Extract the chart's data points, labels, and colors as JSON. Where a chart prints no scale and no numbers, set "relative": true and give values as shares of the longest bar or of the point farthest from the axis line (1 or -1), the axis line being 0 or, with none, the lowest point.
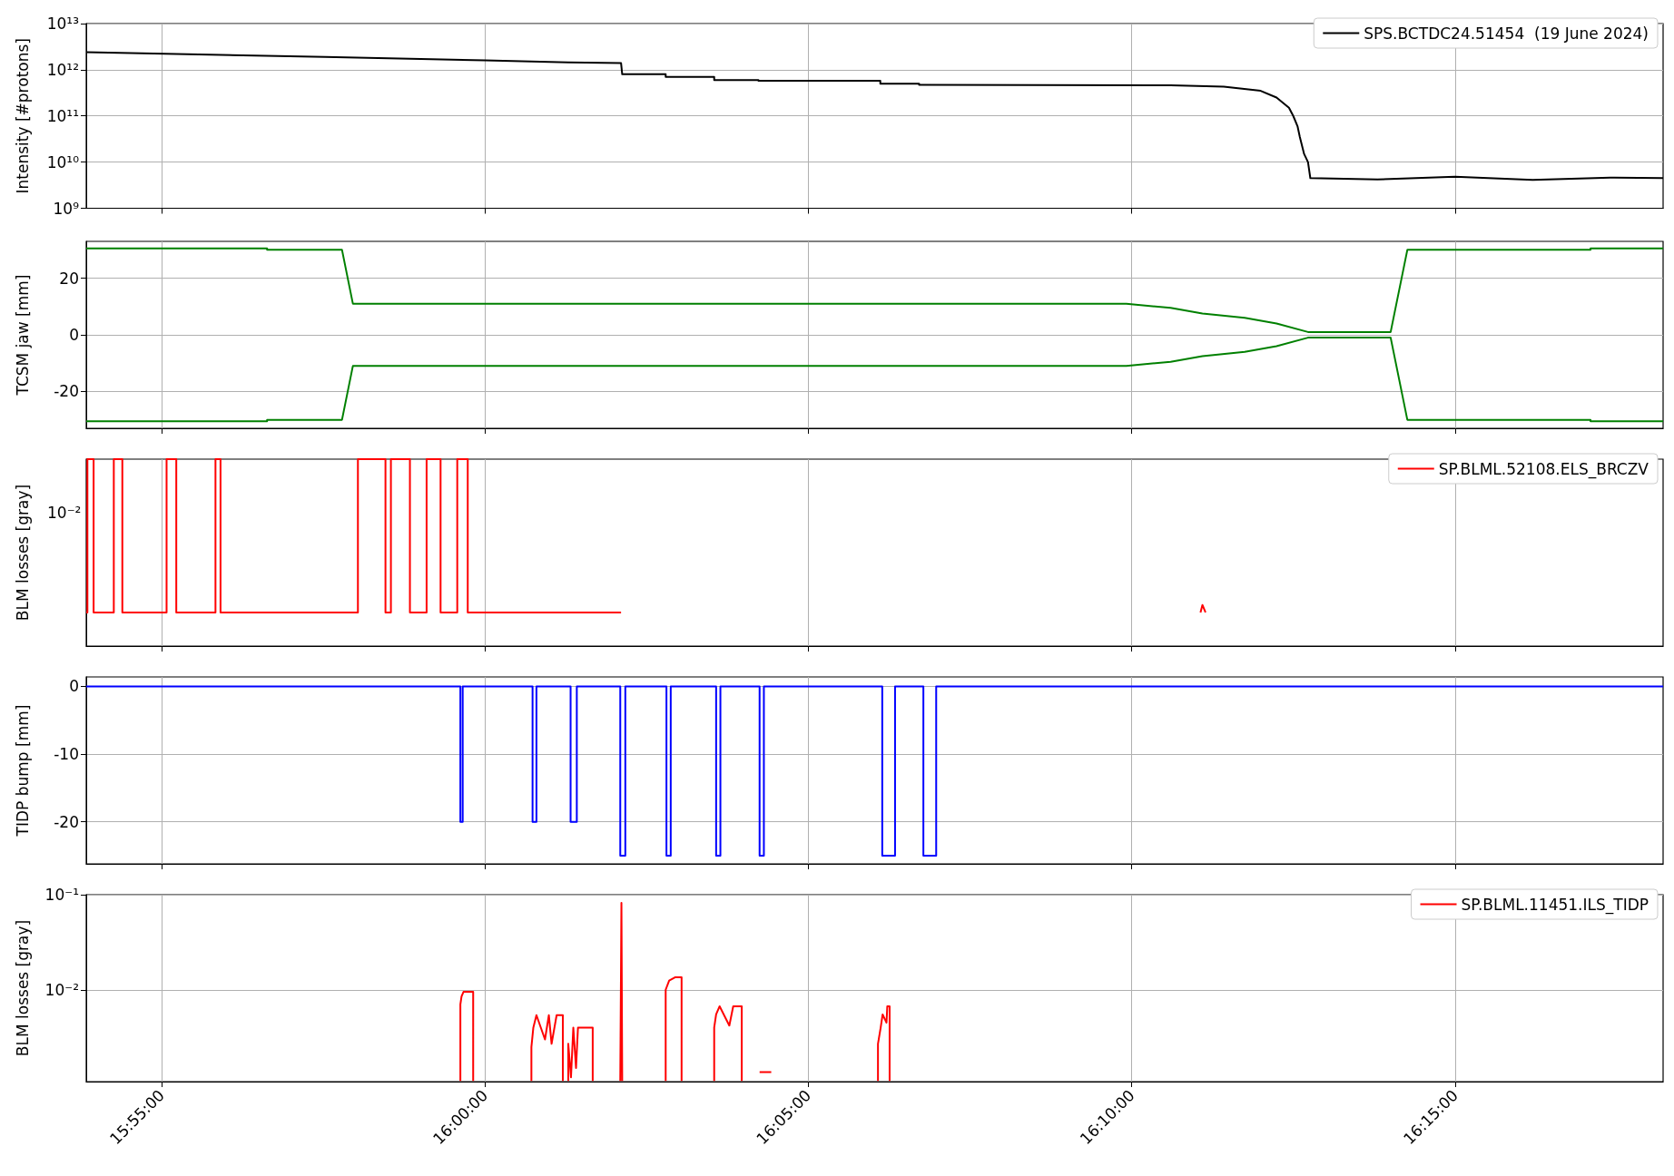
{
  "chart_data": [
    {
      "type": "line",
      "ylabel": "Intensity [#protons]",
      "log": true,
      "grid": true,
      "legend": "top right",
      "tick_labels": "y",
      "xlim": [
        15.8973,
        16.3036
      ],
      "xticks": [
        {
          "value": 15.9167,
          "label": null
        },
        {
          "value": 16,
          "label": null
        },
        {
          "value": 16.0833,
          "label": null
        },
        {
          "value": 16.1667,
          "label": null
        },
        {
          "value": 16.25,
          "label": null
        }
      ],
      "ylim": [
        1000000000.0,
        10000000000000.0
      ],
      "yticks": [
        {
          "value": 1000000000.0,
          "label": "10⁹"
        },
        {
          "value": 10000000000.0,
          "label": "10¹⁰"
        },
        {
          "value": 100000000000.0,
          "label": "10¹¹"
        },
        {
          "value": 1000000000000.0,
          "label": "10¹²"
        },
        {
          "value": 10000000000000.0,
          "label": "10¹³"
        }
      ],
      "series": [
        {
          "name": "SPS.BCTDC24.51454  (19 June 2024)",
          "color": "#000000",
          "x": [
            15.8973,
            15.9589,
            16,
            16.0215,
            16.0351,
            16.0354,
            16.0466,
            16.0466,
            16.0591,
            16.0591,
            16.0705,
            16.0705,
            16.1019,
            16.1019,
            16.1119,
            16.1119,
            16.1767,
            16.1904,
            16.1999,
            16.204,
            16.2072,
            16.2083,
            16.2094,
            16.21,
            16.2111,
            16.2121,
            16.2127,
            16.23,
            16.25,
            16.27,
            16.29,
            16.3036
          ],
          "values": [
            2400000000000.0,
            1900000000000.0,
            1600000000000.0,
            1450000000000.0,
            1400000000000.0,
            800000000000.0,
            800000000000.0,
            700000000000.0,
            700000000000.0,
            600000000000.0,
            600000000000.0,
            580000000000.0,
            580000000000.0,
            500000000000.0,
            500000000000.0,
            470000000000.0,
            460000000000.0,
            430000000000.0,
            350000000000.0,
            250000000000.0,
            150000000000.0,
            100000000000.0,
            60000000000.0,
            35000000000.0,
            15000000000.0,
            10000000000.0,
            4500000000.0,
            4200000000.0,
            4800000000.0,
            4100000000.0,
            4600000000.0,
            4500000000.0
          ]
        }
      ]
    },
    {
      "type": "line",
      "ylabel": "TCSM jaw [mm]",
      "grid": true,
      "tick_labels": "y",
      "xlim": [
        15.8973,
        16.3036
      ],
      "xticks": [
        {
          "value": 15.9167,
          "label": null
        },
        {
          "value": 16,
          "label": null
        },
        {
          "value": 16.0833,
          "label": null
        },
        {
          "value": 16.1667,
          "label": null
        },
        {
          "value": 16.25,
          "label": null
        }
      ],
      "ylim": [
        -33,
        33
      ],
      "yticks": [
        -20,
        0,
        20
      ],
      "series": [
        {
          "color": "#008000",
          "x": [
            15.8973,
            15.9439,
            15.9439,
            15.9632,
            15.966,
            16.1653,
            16.1767,
            16.1849,
            16.1958,
            16.204,
            16.2121,
            16.2334,
            16.2377,
            16.2849,
            16.2849,
            16.3036
          ],
          "values": [
            30.5,
            30.5,
            30,
            30,
            11,
            11,
            9.5,
            7.5,
            6,
            4,
            1,
            1,
            30,
            30,
            30.5,
            30.5
          ]
        },
        {
          "color": "#008000",
          "x": [
            15.8973,
            15.9439,
            15.9439,
            15.9632,
            15.966,
            16.1653,
            16.1767,
            16.1849,
            16.1958,
            16.204,
            16.2121,
            16.2334,
            16.2377,
            16.2849,
            16.2849,
            16.3036
          ],
          "values": [
            -30.5,
            -30.5,
            -30,
            -30,
            -11,
            -11,
            -9.5,
            -7.5,
            -6,
            -4,
            -1,
            -1,
            -30,
            -30,
            -30.5,
            -30.5
          ]
        }
      ]
    },
    {
      "type": "line",
      "ylabel": "BLM losses [gray]",
      "relative": true,
      "grid": "x",
      "legend": "top right",
      "tick_labels": "y",
      "annotations": [
        "10⁻²"
      ],
      "xlim": [
        15.8973,
        16.3036
      ],
      "xticks": [
        {
          "value": 15.9167,
          "label": null
        },
        {
          "value": 16,
          "label": null
        },
        {
          "value": 16.0833,
          "label": null
        },
        {
          "value": 16.1667,
          "label": null
        },
        {
          "value": 16.25,
          "label": null
        }
      ],
      "series": [
        {
          "name": "SP.BLML.52108.ELS_BRCZV",
          "color": "#ff0000",
          "x": [
            15.8973,
            15.8976,
            15.8976,
            15.8992,
            15.8992,
            15.9044,
            15.9044,
            15.9066,
            15.9066,
            15.918,
            15.918,
            15.9205,
            15.9205,
            15.9306,
            15.9306,
            15.9319,
            15.9319,
            15.9673,
            15.9673,
            15.9744,
            15.9744,
            15.9758,
            15.9758,
            15.9807,
            15.9807,
            15.985,
            15.985,
            15.9886,
            15.9886,
            15.9929,
            15.9929,
            15.9956,
            15.9956,
            16.0351,
            16.1,
            16.1844,
            16.1849,
            16.1857
          ],
          "values": [
            0.18,
            0.18,
            1,
            1,
            0.18,
            0.18,
            1,
            1,
            0.18,
            0.18,
            1,
            1,
            0.18,
            0.18,
            1,
            1,
            0.18,
            0.18,
            1,
            1,
            0.18,
            0.18,
            1,
            1,
            0.18,
            0.18,
            1,
            1,
            0.18,
            0.18,
            1,
            1,
            0.18,
            0.18,
            null,
            0.18,
            0.22,
            0.18
          ]
        }
      ]
    },
    {
      "type": "line",
      "ylabel": "TIDP bump [mm]",
      "grid": true,
      "tick_labels": "y",
      "xlim": [
        15.8973,
        16.3036
      ],
      "xticks": [
        {
          "value": 15.9167,
          "label": null
        },
        {
          "value": 16,
          "label": null
        },
        {
          "value": 16.0833,
          "label": null
        },
        {
          "value": 16.1667,
          "label": null
        },
        {
          "value": 16.25,
          "label": null
        }
      ],
      "ylim": [
        -26.2,
        1.4
      ],
      "yticks": [
        -20,
        -10,
        0
      ],
      "series": [
        {
          "color": "#0000ff",
          "x": [
            15.8973,
            15.9937,
            15.9937,
            15.9943,
            15.9943,
            16.0123,
            16.0123,
            16.0133,
            16.0133,
            16.0221,
            16.0221,
            16.0237,
            16.0237,
            16.0349,
            16.0349,
            16.0362,
            16.0362,
            16.0468,
            16.0468,
            16.0479,
            16.0479,
            16.0596,
            16.0596,
            16.0607,
            16.0607,
            16.0708,
            16.0708,
            16.0719,
            16.0719,
            16.1024,
            16.1024,
            16.1057,
            16.1057,
            16.113,
            16.113,
            16.1163,
            16.1163,
            16.3036
          ],
          "values": [
            0,
            0,
            -20,
            -20,
            0,
            0,
            -20,
            -20,
            0,
            0,
            -20,
            -20,
            0,
            0,
            -25,
            -25,
            0,
            0,
            -25,
            -25,
            0,
            0,
            -25,
            -25,
            0,
            0,
            -25,
            -25,
            0,
            0,
            -25,
            -25,
            0,
            0,
            -25,
            -25,
            0,
            0
          ]
        }
      ]
    },
    {
      "type": "line",
      "ylabel": "BLM losses [gray]",
      "log": true,
      "grid": true,
      "legend": "top right",
      "xlim": [
        15.8973,
        16.3036
      ],
      "xticks": [
        {
          "value": 15.9167,
          "label": "15:55:00"
        },
        {
          "value": 16,
          "label": "16:00:00"
        },
        {
          "value": 16.0833,
          "label": "16:05:00"
        },
        {
          "value": 16.1667,
          "label": "16:10:00"
        },
        {
          "value": 16.25,
          "label": "16:15:00"
        }
      ],
      "ylim": [
        0.00108,
        0.1
      ],
      "yticks": [
        {
          "value": 0.01,
          "label": "10⁻²"
        },
        {
          "value": 0.1,
          "label": "10⁻¹"
        }
      ],
      "series": [
        {
          "name": "SP.BLML.11451.ILS_TIDP",
          "color": "#ff0000",
          "x": [
            15.9937,
            15.9937,
            15.994,
            15.9945,
            15.997,
            15.997,
            16.005,
            16.012,
            16.012,
            16.0125,
            16.0133,
            16.0155,
            16.0165,
            16.0172,
            16.0185,
            16.0201,
            16.0201,
            16.021,
            16.0215,
            16.0215,
            16.0222,
            16.0228,
            16.0235,
            16.024,
            16.0278,
            16.0278,
            16.03,
            16.0349,
            16.0352,
            16.0354,
            16.04,
            16.0466,
            16.0466,
            16.0475,
            16.049,
            16.0507,
            16.0507,
            16.055,
            16.0591,
            16.0591,
            16.0596,
            16.0605,
            16.063,
            16.064,
            16.0662,
            16.0662,
            16.068,
            16.0708,
            16.0738,
            16.09,
            16.1013,
            16.1013,
            16.102,
            16.1025,
            16.1035,
            16.1037,
            16.1043,
            16.1043
          ],
          "values": [
            0.0011,
            0.007,
            0.0085,
            0.0095,
            0.0095,
            0.0011,
            null,
            0.0011,
            0.0025,
            0.004,
            0.0054,
            0.003,
            0.0054,
            0.0027,
            0.0054,
            0.0054,
            0.0011,
            null,
            0.0011,
            0.0027,
            0.0012,
            0.004,
            0.0015,
            0.004,
            0.004,
            0.0011,
            null,
            0.0011,
            0.082,
            0.0011,
            null,
            0.0011,
            0.01,
            0.0125,
            0.0135,
            0.0135,
            0.0011,
            null,
            0.0011,
            0.004,
            0.0055,
            0.0067,
            0.0042,
            0.0067,
            0.0067,
            0.0011,
            null,
            0.00136,
            0.00136,
            null,
            0.0011,
            0.0027,
            0.004,
            0.0055,
            0.0045,
            0.0067,
            0.0067,
            0.0011
          ]
        }
      ]
    }
  ]
}
